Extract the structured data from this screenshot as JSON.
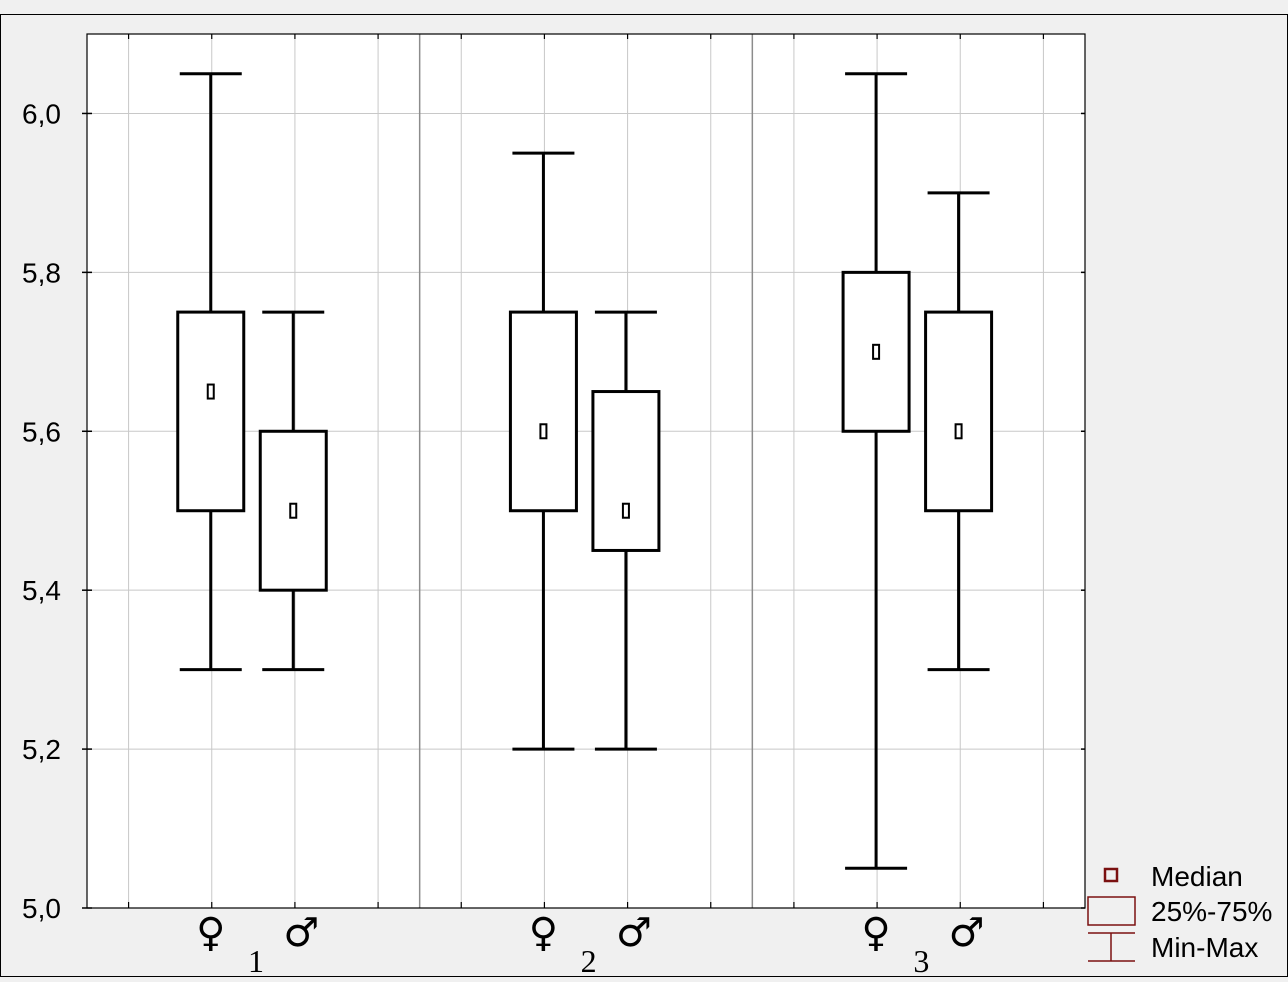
{
  "chart_data": {
    "type": "boxplot",
    "title": "",
    "xlabel": "",
    "ylabel": "",
    "ylim": [
      5.0,
      6.1
    ],
    "yticks": [
      "5,0",
      "5,2",
      "5,4",
      "5,6",
      "5,8",
      "6,0"
    ],
    "grid": true,
    "legend_placement": "bottom-right",
    "groups": [
      {
        "label": "1",
        "female_symbol": "♀",
        "male_symbol": "♂"
      },
      {
        "label": "2",
        "female_symbol": "♀",
        "male_symbol": "♂"
      },
      {
        "label": "3",
        "female_symbol": "♀",
        "male_symbol": "♂"
      }
    ],
    "boxes": [
      {
        "group": 0,
        "sex": "female",
        "min": 5.3,
        "q1": 5.5,
        "median": 5.65,
        "q3": 5.75,
        "max": 6.05
      },
      {
        "group": 0,
        "sex": "male",
        "min": 5.3,
        "q1": 5.4,
        "median": 5.5,
        "q3": 5.6,
        "max": 5.75
      },
      {
        "group": 1,
        "sex": "female",
        "min": 5.2,
        "q1": 5.5,
        "median": 5.6,
        "q3": 5.75,
        "max": 5.95
      },
      {
        "group": 1,
        "sex": "male",
        "min": 5.2,
        "q1": 5.45,
        "median": 5.5,
        "q3": 5.65,
        "max": 5.75
      },
      {
        "group": 2,
        "sex": "female",
        "min": 5.05,
        "q1": 5.6,
        "median": 5.7,
        "q3": 5.8,
        "max": 6.05
      },
      {
        "group": 2,
        "sex": "male",
        "min": 5.3,
        "q1": 5.5,
        "median": 5.6,
        "q3": 5.75,
        "max": 5.9
      }
    ],
    "legend": [
      {
        "key": "median",
        "label": "Median"
      },
      {
        "key": "box",
        "label": "25%-75%"
      },
      {
        "key": "whisker",
        "label": "Min-Max"
      }
    ],
    "colors": {
      "background": "#f0f0f0",
      "plot_area": "#ffffff",
      "grid": "#c8c8c8",
      "divider": "#8c8c8c",
      "ink": "#000000",
      "legend_marker": "#7a1010"
    }
  }
}
